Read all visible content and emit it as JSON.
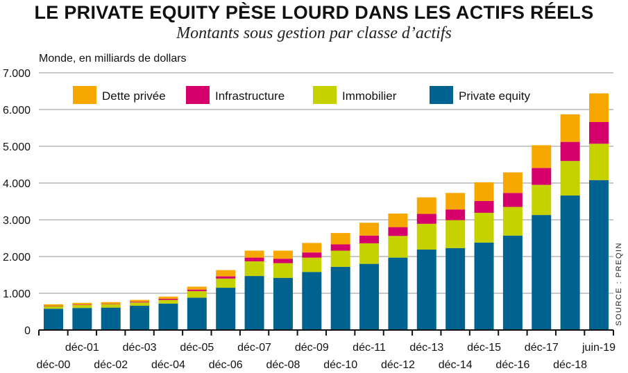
{
  "chart_data": {
    "type": "bar",
    "stacked": true,
    "title": "LE PRIVATE EQUITY PÈSE LOURD DANS LES ACTIFS RÉELS",
    "subtitle": "Montants sous gestion par classe d’actifs",
    "unit_label": "Monde, en milliards de dollars",
    "source": "SOURCE : PREQIN",
    "categories": [
      "déc-00",
      "déc-01",
      "déc-02",
      "déc-03",
      "déc-04",
      "déc-05",
      "déc-06",
      "déc-07",
      "déc-08",
      "déc-09",
      "déc-10",
      "déc-11",
      "déc-12",
      "déc-13",
      "déc-14",
      "déc-15",
      "déc-16",
      "déc-17",
      "déc-18",
      "juin-19"
    ],
    "ylim": [
      0,
      7000
    ],
    "yticks": [
      0,
      1000,
      2000,
      3000,
      4000,
      5000,
      6000,
      7000
    ],
    "ytick_labels": [
      "0",
      "1.000",
      "2.000",
      "3.000",
      "4.000",
      "5.000",
      "6.000",
      "7.000"
    ],
    "grid": true,
    "legend_position": "top",
    "series": [
      {
        "name": "Private equity",
        "color": "#00638f",
        "values": [
          580,
          600,
          610,
          660,
          720,
          880,
          1150,
          1470,
          1420,
          1580,
          1720,
          1800,
          1970,
          2190,
          2230,
          2380,
          2570,
          3130,
          3660,
          4080
        ]
      },
      {
        "name": "Immobilier",
        "color": "#c5d200",
        "values": [
          70,
          80,
          90,
          90,
          100,
          180,
          250,
          400,
          400,
          390,
          440,
          560,
          590,
          700,
          760,
          810,
          780,
          820,
          940,
          990
        ]
      },
      {
        "name": "Infrastructure",
        "color": "#d6006b",
        "values": [
          10,
          10,
          10,
          20,
          30,
          40,
          60,
          100,
          120,
          140,
          170,
          210,
          240,
          270,
          290,
          320,
          380,
          460,
          520,
          590
        ]
      },
      {
        "name": "Dette privée",
        "color": "#f7a800",
        "values": [
          40,
          50,
          50,
          50,
          60,
          80,
          170,
          190,
          220,
          260,
          310,
          350,
          370,
          450,
          450,
          510,
          560,
          620,
          750,
          780
        ]
      }
    ],
    "legend_order": [
      "Dette privée",
      "Infrastructure",
      "Immobilier",
      "Private equity"
    ]
  }
}
